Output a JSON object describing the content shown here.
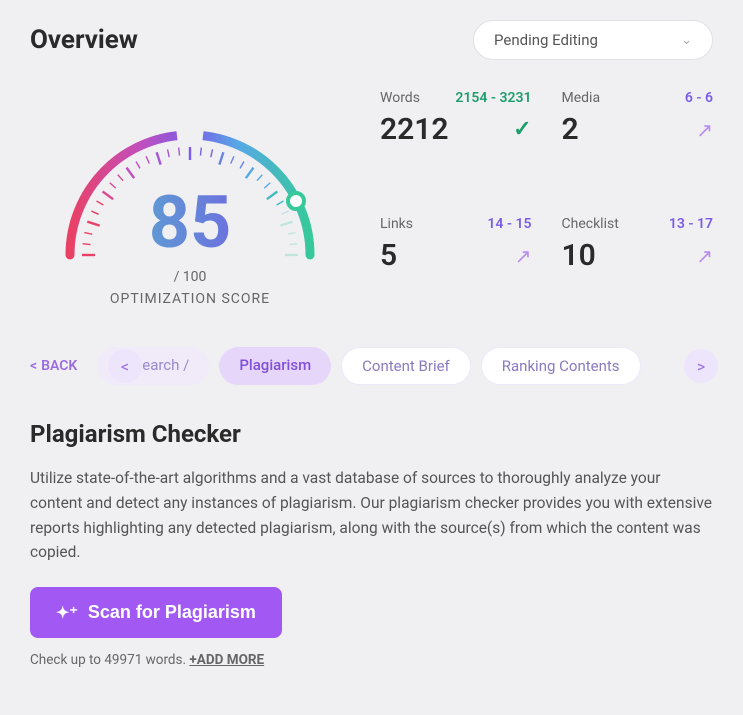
{
  "header": {
    "title": "Overview",
    "dropdown_value": "Pending Editing"
  },
  "gauge": {
    "score": "85",
    "max": "/ 100",
    "label": "OPTIMIZATION SCORE",
    "percent": 85,
    "colors": {
      "start": "#e94166",
      "mid1": "#c04fbf",
      "mid2": "#7c5ce6",
      "mid3": "#56a8e6",
      "end": "#36c99a"
    }
  },
  "stats": {
    "words": {
      "label": "Words",
      "range": "2154 - 3231",
      "range_color": "green",
      "value": "2212",
      "indicator": "check"
    },
    "media": {
      "label": "Media",
      "range": "6 - 6",
      "range_color": "purple",
      "value": "2",
      "indicator": "arrow"
    },
    "links": {
      "label": "Links",
      "range": "14 - 15",
      "range_color": "purple",
      "value": "5",
      "indicator": "arrow"
    },
    "checklist": {
      "label": "Checklist",
      "range": "13 - 17",
      "range_color": "purple",
      "value": "10",
      "indicator": "arrow"
    }
  },
  "nav": {
    "back": "BACK",
    "tabs": [
      {
        "label": "Research /",
        "style": "light"
      },
      {
        "label": "Plagiarism",
        "style": "active"
      },
      {
        "label": "Content Brief",
        "style": "default"
      },
      {
        "label": "Ranking Contents",
        "style": "default"
      }
    ]
  },
  "section": {
    "title": "Plagiarism Checker",
    "description": "Utilize state-of-the-art algorithms and a vast database of sources to thoroughly analyze your content and detect any instances of plagiarism. Our plagiarism checker provides you with extensive reports highlighting any detected plagiarism, along with the source(s) from which the content was copied.",
    "button": "Scan for Plagiarism",
    "footer_prefix": "Check up to 49971 words. ",
    "footer_link": "+ADD MORE"
  }
}
